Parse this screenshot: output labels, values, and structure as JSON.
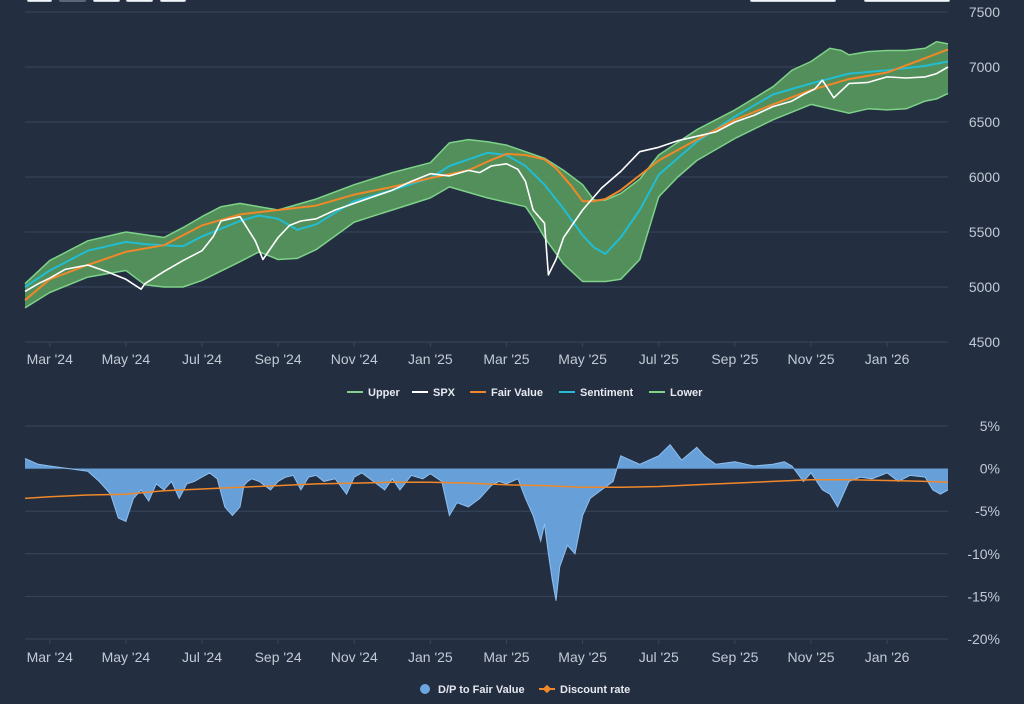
{
  "colors": {
    "background": "#232e40",
    "grid": "#38465c",
    "axis_text": "#c3cad6",
    "legend_text": "#e6e9ef",
    "band_fill": "#5aa05f",
    "band_line": "#7fd28a",
    "spx": "#ffffff",
    "fair_value": "#f0882a",
    "sentiment": "#22bcd3",
    "dp_fill": "#6ca6e0",
    "dp_line": "#8ebff0",
    "discount": "#f0882a"
  },
  "top_controls": {
    "left_count": 5,
    "right_count": 2
  },
  "chart_data": [
    {
      "type": "line",
      "x_ticks": [
        "Mar '24",
        "May '24",
        "Jul '24",
        "Sep '24",
        "Nov '24",
        "Jan '25",
        "Mar '25",
        "May '25",
        "Jul '25",
        "Sep '25",
        "Nov '25",
        "Jan '26"
      ],
      "x_tick_months": [
        1,
        3,
        5,
        7,
        9,
        11,
        13,
        15,
        17,
        19,
        21,
        23
      ],
      "x_range_months": [
        0.35,
        24.6
      ],
      "y_ticks": [
        "4500",
        "5000",
        "5500",
        "6000",
        "6500",
        "7000",
        "7500"
      ],
      "ylim": [
        4500,
        7500
      ],
      "grid": true,
      "legend_position": "bottom",
      "legend": [
        "Upper",
        "SPX",
        "Fair Value",
        "Sentiment",
        "Lower"
      ],
      "series": [
        {
          "name": "SPX",
          "months": [
            0.35,
            0.7,
            1,
            1.4,
            2,
            2.5,
            3,
            3.4,
            3.5,
            4,
            4.5,
            5,
            5.3,
            5.5,
            6,
            6.4,
            6.6,
            7,
            7.3,
            7.6,
            8,
            8.5,
            9,
            9.5,
            10,
            10.5,
            11,
            11.5,
            12,
            12.3,
            12.6,
            13,
            13.3,
            13.5,
            13.7,
            14,
            14.1,
            14.3,
            14.5,
            14.7,
            15,
            15.5,
            16,
            16.5,
            17,
            17.5,
            18,
            18.5,
            19,
            19.5,
            20,
            20.5,
            20.8,
            21.1,
            21.3,
            21.6,
            22,
            22.5,
            23,
            23.5,
            24,
            24.3,
            24.6
          ],
          "values": [
            4960,
            5030,
            5080,
            5160,
            5200,
            5140,
            5070,
            4980,
            5030,
            5140,
            5240,
            5330,
            5460,
            5600,
            5640,
            5420,
            5250,
            5450,
            5560,
            5600,
            5620,
            5700,
            5760,
            5820,
            5880,
            5960,
            6030,
            6010,
            6060,
            6040,
            6100,
            6120,
            6070,
            5960,
            5700,
            5580,
            5110,
            5250,
            5450,
            5550,
            5700,
            5900,
            6050,
            6230,
            6270,
            6330,
            6370,
            6410,
            6500,
            6560,
            6640,
            6690,
            6750,
            6800,
            6880,
            6720,
            6850,
            6860,
            6910,
            6900,
            6910,
            6940,
            7000
          ]
        },
        {
          "name": "Fair Value",
          "months": [
            0.35,
            1,
            2,
            3,
            4,
            5,
            6,
            7,
            8,
            9,
            10,
            11,
            12,
            12.5,
            13,
            13.5,
            14,
            14.3,
            14.7,
            15,
            15.3,
            15.6,
            16,
            17,
            18,
            19,
            20,
            21,
            22,
            23,
            24,
            24.6
          ],
          "values": [
            4880,
            5070,
            5200,
            5320,
            5380,
            5560,
            5660,
            5700,
            5740,
            5840,
            5910,
            5990,
            6060,
            6140,
            6210,
            6200,
            6160,
            6080,
            5920,
            5780,
            5780,
            5800,
            5880,
            6150,
            6340,
            6520,
            6660,
            6790,
            6890,
            6950,
            7080,
            7160
          ]
        },
        {
          "name": "Sentiment",
          "months": [
            0.35,
            1,
            2,
            3,
            3.5,
            4,
            4.5,
            5,
            6,
            6.5,
            7,
            7.5,
            8,
            9,
            10,
            11,
            11.5,
            12,
            12.5,
            13,
            13.5,
            14,
            14.5,
            15,
            15.3,
            15.6,
            16,
            16.5,
            17,
            18,
            19,
            20,
            21,
            22,
            23,
            24,
            24.6
          ],
          "values": [
            5000,
            5150,
            5330,
            5410,
            5390,
            5380,
            5370,
            5460,
            5600,
            5650,
            5620,
            5520,
            5570,
            5780,
            5880,
            5990,
            6100,
            6160,
            6220,
            6200,
            6100,
            5930,
            5710,
            5470,
            5360,
            5300,
            5450,
            5700,
            6020,
            6320,
            6550,
            6750,
            6850,
            6940,
            6970,
            7010,
            7050
          ]
        },
        {
          "name": "Upper",
          "months": [
            0.35,
            1,
            2,
            3,
            4,
            4.5,
            5,
            5.5,
            6,
            6.5,
            7,
            8,
            9,
            10,
            11,
            11.5,
            12,
            12.5,
            13,
            13.5,
            14,
            14.5,
            15,
            15.3,
            15.6,
            16,
            16.5,
            17,
            18,
            19,
            20,
            20.5,
            21,
            21.5,
            21.8,
            22,
            22.5,
            23,
            23.5,
            24,
            24.3,
            24.6
          ],
          "values": [
            5030,
            5240,
            5420,
            5500,
            5450,
            5540,
            5640,
            5730,
            5760,
            5730,
            5700,
            5800,
            5930,
            6040,
            6130,
            6310,
            6340,
            6320,
            6290,
            6230,
            6170,
            6060,
            5930,
            5790,
            5790,
            5850,
            5980,
            6200,
            6430,
            6610,
            6820,
            6970,
            7050,
            7170,
            7150,
            7110,
            7140,
            7150,
            7150,
            7170,
            7230,
            7210
          ]
        },
        {
          "name": "Lower",
          "months": [
            0.35,
            1,
            2,
            3,
            3.5,
            4,
            4.5,
            5,
            6,
            6.5,
            7,
            7.5,
            8,
            9,
            10,
            11,
            11.5,
            12,
            12.5,
            13,
            13.5,
            13.7,
            14,
            14.5,
            15,
            15.3,
            15.6,
            16,
            16.5,
            17,
            17.5,
            18,
            19,
            20,
            21,
            22,
            22.5,
            23,
            23.5,
            24,
            24.3,
            24.6
          ],
          "values": [
            4810,
            4950,
            5090,
            5150,
            5020,
            5000,
            5000,
            5060,
            5230,
            5320,
            5250,
            5260,
            5340,
            5590,
            5700,
            5810,
            5910,
            5860,
            5810,
            5770,
            5730,
            5630,
            5450,
            5210,
            5050,
            5050,
            5050,
            5070,
            5250,
            5820,
            6000,
            6150,
            6350,
            6520,
            6660,
            6580,
            6620,
            6610,
            6620,
            6690,
            6710,
            6760
          ]
        }
      ]
    },
    {
      "type": "area",
      "x_ticks": [
        "Mar '24",
        "May '24",
        "Jul '24",
        "Sep '24",
        "Nov '24",
        "Jan '25",
        "Mar '25",
        "May '25",
        "Jul '25",
        "Sep '25",
        "Nov '25",
        "Jan '26"
      ],
      "x_tick_months": [
        1,
        3,
        5,
        7,
        9,
        11,
        13,
        15,
        17,
        19,
        21,
        23
      ],
      "x_range_months": [
        0.35,
        24.6
      ],
      "y_ticks": [
        "5%",
        "0%",
        "-5%",
        "-10%",
        "-15%",
        "-20%"
      ],
      "ylim": [
        -20,
        5
      ],
      "grid": true,
      "legend_position": "bottom",
      "legend": [
        "D/P to Fair Value",
        "Discount rate"
      ],
      "series": [
        {
          "name": "D/P to Fair Value",
          "months": [
            0.35,
            0.7,
            1,
            1.5,
            2,
            2.3,
            2.6,
            2.8,
            3,
            3.2,
            3.4,
            3.6,
            3.8,
            4,
            4.2,
            4.4,
            4.6,
            4.8,
            5,
            5.2,
            5.4,
            5.6,
            5.8,
            6,
            6.1,
            6.2,
            6.3,
            6.5,
            6.8,
            7,
            7.2,
            7.4,
            7.6,
            7.8,
            8,
            8.2,
            8.5,
            8.8,
            9,
            9.2,
            9.5,
            9.8,
            10,
            10.2,
            10.5,
            10.8,
            11,
            11.3,
            11.5,
            11.7,
            12,
            12.3,
            12.6,
            12.8,
            13,
            13.3,
            13.5,
            13.7,
            13.9,
            14,
            14.1,
            14.2,
            14.3,
            14.4,
            14.6,
            14.8,
            15,
            15.2,
            15.5,
            15.8,
            16,
            16.5,
            17,
            17.3,
            17.6,
            18,
            18.2,
            18.5,
            19,
            19.5,
            20,
            20.3,
            20.5,
            20.8,
            21,
            21.3,
            21.5,
            21.7,
            22,
            22.3,
            22.6,
            23,
            23.3,
            23.6,
            24,
            24.2,
            24.4,
            24.6
          ],
          "values": [
            1.2,
            0.5,
            0.3,
            0,
            -0.3,
            -1.5,
            -3,
            -5.8,
            -6.2,
            -3.5,
            -2.5,
            -3.8,
            -1.8,
            -2.5,
            -1.5,
            -3.5,
            -1.8,
            -1.5,
            -1,
            -0.5,
            -1.2,
            -4.5,
            -5.5,
            -4.5,
            -2,
            -1.5,
            -1.2,
            -1.5,
            -2.5,
            -1.5,
            -1,
            -0.8,
            -2.5,
            -1,
            -0.8,
            -1.5,
            -1.2,
            -3,
            -1,
            -0.5,
            -1.5,
            -2.5,
            -1.2,
            -2.5,
            -0.8,
            -1.2,
            -0.6,
            -1.5,
            -5.5,
            -4,
            -4.5,
            -3.5,
            -2,
            -1.5,
            -1.8,
            -1.2,
            -3.5,
            -5.5,
            -8.5,
            -6.5,
            -10,
            -13,
            -15.5,
            -11.5,
            -9,
            -10,
            -5.5,
            -3.5,
            -2.5,
            -1.5,
            1.5,
            0.5,
            1.5,
            2.8,
            1,
            2.5,
            1.5,
            0.5,
            0.8,
            0.3,
            0.5,
            0.8,
            0.3,
            -1.5,
            -0.5,
            -2.5,
            -3,
            -4.5,
            -1.5,
            -1,
            -1.2,
            -0.5,
            -1.5,
            -0.8,
            -1,
            -2.5,
            -3,
            -2.5
          ]
        },
        {
          "name": "Discount rate",
          "months": [
            0.35,
            1,
            2,
            3,
            4,
            5,
            6,
            7,
            8,
            9,
            10,
            11,
            12,
            13,
            14,
            15,
            16,
            17,
            18,
            19,
            20,
            21,
            22,
            23,
            24,
            24.6
          ],
          "values": [
            -3.5,
            -3.3,
            -3.1,
            -3.0,
            -2.6,
            -2.4,
            -2.2,
            -2.0,
            -1.8,
            -1.7,
            -1.6,
            -1.6,
            -1.7,
            -1.9,
            -2.0,
            -2.2,
            -2.2,
            -2.1,
            -1.9,
            -1.7,
            -1.5,
            -1.3,
            -1.3,
            -1.4,
            -1.5,
            -1.6
          ]
        }
      ]
    }
  ]
}
